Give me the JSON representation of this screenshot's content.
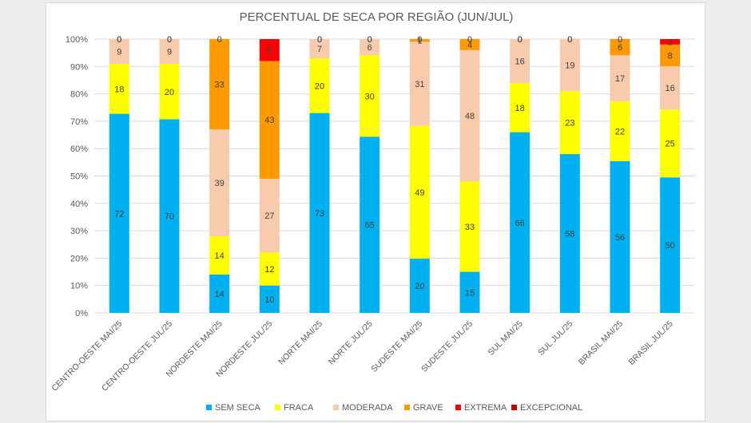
{
  "chart_data": {
    "type": "bar",
    "stacked": "percent",
    "title": "PERCENTUAL DE SECA POR REGIÃO (JUN/JUL)",
    "xlabel": "",
    "ylabel": "",
    "ylim": [
      0,
      100
    ],
    "yticks": [
      "0%",
      "10%",
      "20%",
      "30%",
      "40%",
      "50%",
      "60%",
      "70%",
      "80%",
      "90%",
      "100%"
    ],
    "grid": true,
    "legend_position": "bottom",
    "categories": [
      "CENTRO-OESTE MAI/25",
      "CENTRO-OESTE JUL/25",
      "NORDESTE MAI/25",
      "NORDESTE JUL/25",
      "NORTE MAI/25",
      "NORTE JUL/25",
      "SUDESTE MAI/25",
      "SUDESTE JUL/25",
      "SUL MAI/25",
      "SUL JUL/25",
      "BRASIL MAI/25",
      "BRASIL JUL/25"
    ],
    "series": [
      {
        "name": "SEM SECA",
        "color": "#00b0f0",
        "values": [
          72,
          70,
          14,
          10,
          73,
          65,
          20,
          15,
          66,
          58,
          56,
          50
        ]
      },
      {
        "name": "FRACA",
        "color": "#ffff00",
        "values": [
          18,
          20,
          14,
          12,
          20,
          30,
          49,
          33,
          18,
          23,
          22,
          25
        ]
      },
      {
        "name": "MODERADA",
        "color": "#f8cbad",
        "values": [
          9,
          9,
          39,
          27,
          7,
          6,
          31,
          48,
          16,
          19,
          17,
          16
        ]
      },
      {
        "name": "GRAVE",
        "color": "#ff9900",
        "values": [
          0,
          0,
          33,
          43,
          0,
          0,
          1,
          4,
          0,
          0,
          6,
          8
        ]
      },
      {
        "name": "EXTREMA",
        "color": "#ff0000",
        "values": [
          0,
          0,
          0,
          8,
          0,
          0,
          0,
          0,
          0,
          0,
          0,
          2
        ]
      },
      {
        "name": "EXCEPCIONAL",
        "color": "#c00000",
        "values": [
          0,
          0,
          0,
          0,
          0,
          0,
          0,
          0,
          0,
          0,
          0,
          0
        ]
      }
    ]
  }
}
